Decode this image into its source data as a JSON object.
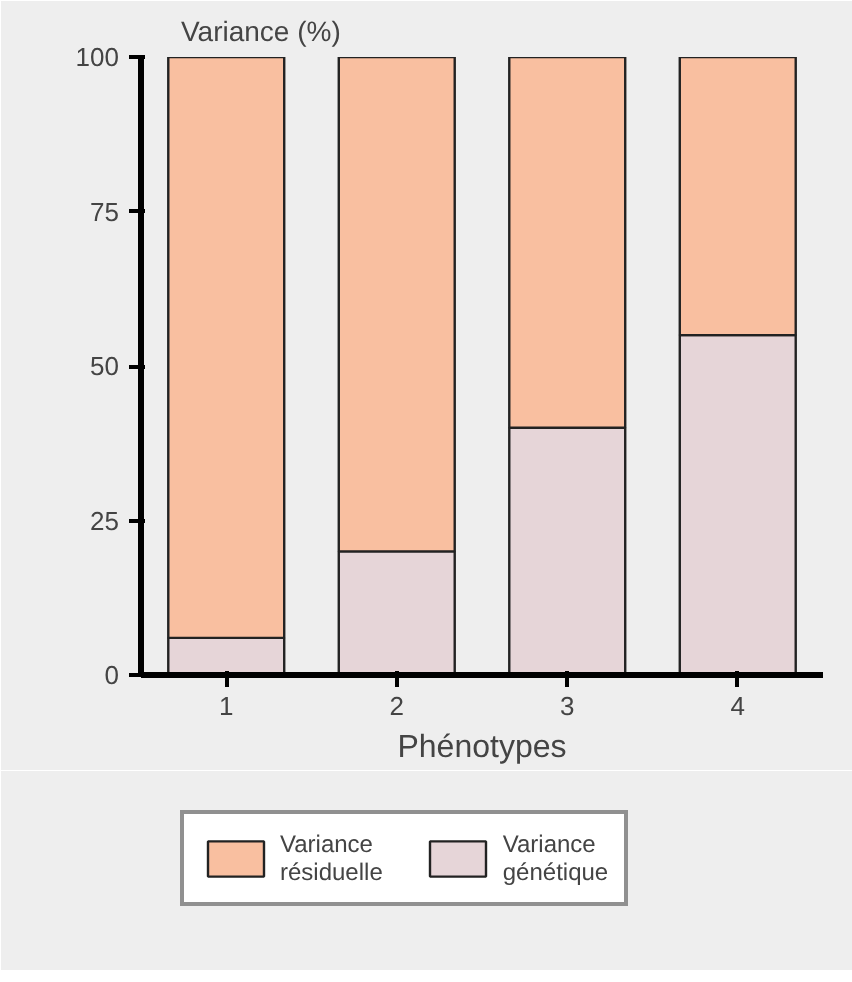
{
  "chart_data": {
    "type": "bar",
    "stacked": true,
    "ylabel": "Variance (%)",
    "xlabel": "Phénotypes",
    "categories": [
      "1",
      "2",
      "3",
      "4"
    ],
    "series": [
      {
        "name": "Variance génétique",
        "color": "#e6d5d8",
        "values": [
          6,
          20,
          40,
          55
        ]
      },
      {
        "name": "Variance résiduelle",
        "color": "#f9bfa0",
        "values": [
          94,
          80,
          60,
          45
        ]
      }
    ],
    "ylim": [
      0,
      100
    ],
    "yticks": [
      0,
      25,
      50,
      75,
      100
    ],
    "grid": false,
    "legend": "bottom"
  }
}
